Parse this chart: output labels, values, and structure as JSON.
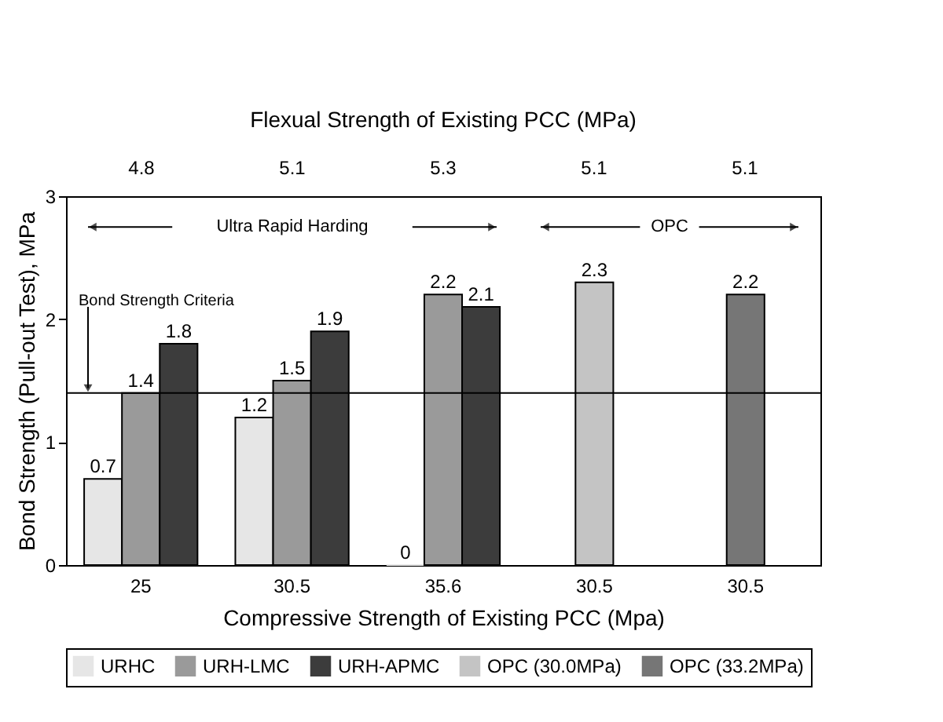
{
  "chart_data": {
    "type": "bar",
    "categories": [
      "25",
      "30.5",
      "35.6",
      "30.5",
      "30.5"
    ],
    "xlabel": "Compressive Strength of Existing PCC (Mpa)",
    "x2label": "Flexual Strength of Existing PCC (MPa)",
    "ylabel": "Bond Strength (Pull-out Test), MPa",
    "series": [
      {
        "name": "URHC",
        "color": "#e6e6e6",
        "values": [
          0.7,
          1.2,
          0,
          null,
          null
        ]
      },
      {
        "name": "URH-LMC",
        "color": "#9a9a9a",
        "values": [
          1.4,
          1.5,
          2.2,
          null,
          null
        ]
      },
      {
        "name": "URH-APMC",
        "color": "#3c3c3c",
        "values": [
          1.8,
          1.9,
          2.1,
          null,
          null
        ]
      },
      {
        "name": "OPC (30.0MPa)",
        "color": "#c4c4c4",
        "values": [
          null,
          null,
          null,
          2.3,
          null
        ]
      },
      {
        "name": "OPC (33.2MPa)",
        "color": "#767676",
        "values": [
          null,
          null,
          null,
          null,
          2.2
        ]
      }
    ],
    "ylim": [
      0,
      3
    ],
    "yticks": [
      0,
      1,
      2,
      3
    ],
    "ref_lines": [
      {
        "axis": "y",
        "value": 1.4,
        "label": "Bond Strength Criteria"
      }
    ],
    "annotations": [
      "4.8",
      "5.1",
      "5.3",
      "5.1",
      "5.1",
      "Ultra Rapid Harding",
      "OPC"
    ],
    "data_labels": true,
    "grid": false,
    "legend": "bottom"
  }
}
